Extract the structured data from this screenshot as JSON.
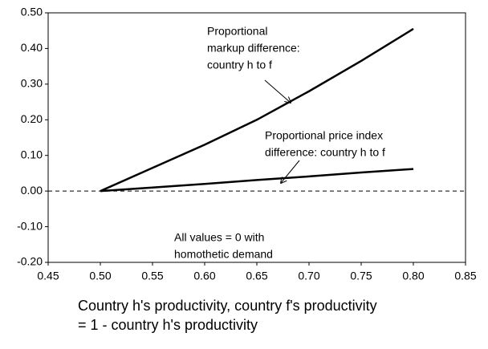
{
  "chart_data": {
    "type": "line",
    "x": [
      0.5,
      0.55,
      0.6,
      0.65,
      0.7,
      0.75,
      0.8
    ],
    "series": [
      {
        "name": "Proportional markup difference: country h to f",
        "color": "#000000",
        "values": [
          0,
          0.065,
          0.13,
          0.2,
          0.28,
          0.365,
          0.455
        ]
      },
      {
        "name": "Proportional price index difference: country h to f",
        "color": "#000000",
        "values": [
          0,
          0.01,
          0.02,
          0.031,
          0.041,
          0.052,
          0.062
        ]
      }
    ],
    "annotations": [
      [
        "Proportional",
        "markup difference:",
        "country h to f"
      ],
      [
        "Proportional price index",
        "difference: country h to f"
      ],
      [
        "All values = 0  with",
        "homothetic demand"
      ]
    ],
    "xlabel": [
      "Country h's productivity, country f's productivity",
      "= 1 - country h's productivity"
    ],
    "xlim": [
      0.45,
      0.85
    ],
    "xticks": [
      {
        "value": 0.45,
        "label": "0.45"
      },
      {
        "value": 0.5,
        "label": "0.50"
      },
      {
        "value": 0.55,
        "label": "0.55"
      },
      {
        "value": 0.6,
        "label": "0.60"
      },
      {
        "value": 0.65,
        "label": "0.65"
      },
      {
        "value": 0.7,
        "label": "0.70"
      },
      {
        "value": 0.75,
        "label": "0.75"
      },
      {
        "value": 0.8,
        "label": "0.80"
      },
      {
        "value": 0.85,
        "label": "0.85"
      }
    ],
    "ylim": [
      -0.2,
      0.5
    ],
    "yticks": [
      {
        "value": -0.2,
        "label": "-0.20"
      },
      {
        "value": -0.1,
        "label": "-0.10"
      },
      {
        "value": 0,
        "label": "0.00"
      },
      {
        "value": 0.1,
        "label": "0.10"
      },
      {
        "value": 0.2,
        "label": "0.20"
      },
      {
        "value": 0.3,
        "label": "0.30"
      },
      {
        "value": 0.4,
        "label": "0.40"
      },
      {
        "value": 0.5,
        "label": "0.50"
      }
    ],
    "zero_line": "dashed"
  }
}
